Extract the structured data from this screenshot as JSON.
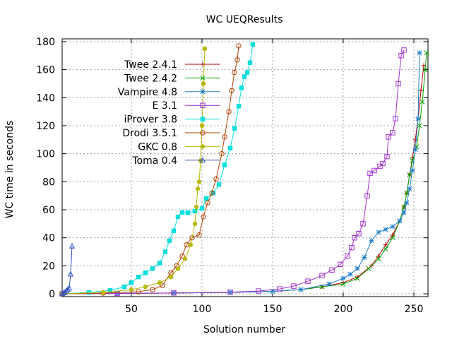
{
  "chart_data": {
    "type": "line",
    "title": "WC UEQResults",
    "xlabel": "Solution number",
    "ylabel": "WC time in seconds",
    "xlim": [
      1,
      260
    ],
    "ylim": [
      -2,
      182
    ],
    "xticks": [
      50,
      100,
      150,
      200,
      250
    ],
    "yticks": [
      0,
      20,
      40,
      60,
      80,
      100,
      120,
      140,
      160,
      180
    ],
    "grid": true,
    "legend_position": "top-left",
    "series": [
      {
        "name": "Twee 2.4.1",
        "color": "#c00000",
        "marker": "plus",
        "points": [
          [
            1,
            0
          ],
          [
            40,
            0.3
          ],
          [
            80,
            0.6
          ],
          [
            120,
            1
          ],
          [
            150,
            1.8
          ],
          [
            170,
            3
          ],
          [
            185,
            5
          ],
          [
            200,
            8
          ],
          [
            210,
            12
          ],
          [
            220,
            20
          ],
          [
            225,
            27
          ],
          [
            230,
            35
          ],
          [
            235,
            42
          ],
          [
            240,
            52
          ],
          [
            243,
            62
          ],
          [
            245,
            72
          ],
          [
            247,
            85
          ],
          [
            249,
            97
          ],
          [
            251,
            110
          ],
          [
            253,
            125
          ],
          [
            255,
            145
          ],
          [
            257,
            163
          ]
        ]
      },
      {
        "name": "Twee 2.4.2",
        "color": "#00a000",
        "marker": "cross",
        "points": [
          [
            1,
            0
          ],
          [
            40,
            0.3
          ],
          [
            80,
            0.6
          ],
          [
            120,
            1
          ],
          [
            150,
            1.8
          ],
          [
            170,
            3
          ],
          [
            185,
            5
          ],
          [
            200,
            7
          ],
          [
            210,
            11
          ],
          [
            218,
            18
          ],
          [
            225,
            25
          ],
          [
            230,
            32
          ],
          [
            235,
            40
          ],
          [
            240,
            52
          ],
          [
            243,
            62
          ],
          [
            245,
            72
          ],
          [
            247,
            85
          ],
          [
            249,
            95
          ],
          [
            252,
            105
          ],
          [
            254,
            120
          ],
          [
            256,
            137
          ],
          [
            258,
            160
          ],
          [
            259,
            172
          ]
        ]
      },
      {
        "name": "Vampire 4.8",
        "color": "#2080d0",
        "marker": "star",
        "points": [
          [
            1,
            0
          ],
          [
            40,
            0.3
          ],
          [
            80,
            0.6
          ],
          [
            120,
            1
          ],
          [
            150,
            1.8
          ],
          [
            170,
            3
          ],
          [
            190,
            7
          ],
          [
            200,
            11
          ],
          [
            205,
            14
          ],
          [
            210,
            18
          ],
          [
            215,
            26
          ],
          [
            220,
            38
          ],
          [
            225,
            44
          ],
          [
            230,
            46
          ],
          [
            235,
            48
          ],
          [
            240,
            52
          ],
          [
            243,
            58
          ],
          [
            245,
            65
          ],
          [
            247,
            75
          ],
          [
            249,
            88
          ],
          [
            251,
            103
          ],
          [
            253,
            125
          ],
          [
            254,
            172
          ]
        ]
      },
      {
        "name": "E 3.1",
        "color": "#a030d0",
        "marker": "square",
        "points": [
          [
            1,
            0
          ],
          [
            40,
            0.3
          ],
          [
            80,
            0.6
          ],
          [
            120,
            1.2
          ],
          [
            140,
            2
          ],
          [
            155,
            3.5
          ],
          [
            165,
            5.5
          ],
          [
            175,
            9
          ],
          [
            185,
            13
          ],
          [
            192,
            17
          ],
          [
            198,
            21
          ],
          [
            203,
            27
          ],
          [
            206,
            33
          ],
          [
            208,
            40
          ],
          [
            211,
            43
          ],
          [
            214,
            50
          ],
          [
            217,
            70
          ],
          [
            219,
            86
          ],
          [
            222,
            88
          ],
          [
            226,
            91
          ],
          [
            228,
            93
          ],
          [
            231,
            98
          ],
          [
            232,
            112
          ],
          [
            235,
            115
          ],
          [
            237,
            125
          ],
          [
            239,
            150
          ],
          [
            241,
            170
          ],
          [
            243,
            174
          ]
        ]
      },
      {
        "name": "iProver 3.8",
        "color": "#00dede",
        "marker": "filled-square",
        "points": [
          [
            1,
            0
          ],
          [
            20,
            1
          ],
          [
            35,
            2.5
          ],
          [
            45,
            5
          ],
          [
            50,
            8
          ],
          [
            55,
            12
          ],
          [
            60,
            15
          ],
          [
            65,
            18
          ],
          [
            70,
            22
          ],
          [
            74,
            30
          ],
          [
            77,
            38
          ],
          [
            80,
            45
          ],
          [
            83,
            55
          ],
          [
            86,
            58
          ],
          [
            90,
            58
          ],
          [
            95,
            59
          ],
          [
            100,
            61
          ],
          [
            103,
            68
          ],
          [
            108,
            72
          ],
          [
            112,
            78
          ],
          [
            116,
            92
          ],
          [
            120,
            104
          ],
          [
            123,
            118
          ],
          [
            126,
            134
          ],
          [
            128,
            147
          ],
          [
            130,
            155
          ],
          [
            132,
            158
          ],
          [
            134,
            165
          ],
          [
            136,
            178
          ]
        ]
      },
      {
        "name": "Drodi 3.5.1",
        "color": "#b04000",
        "marker": "circle",
        "points": [
          [
            1,
            0
          ],
          [
            30,
            0.5
          ],
          [
            55,
            1.5
          ],
          [
            65,
            3
          ],
          [
            72,
            6
          ],
          [
            78,
            15
          ],
          [
            82,
            20
          ],
          [
            86,
            27
          ],
          [
            89,
            35
          ],
          [
            93,
            40
          ],
          [
            98,
            42
          ],
          [
            101,
            55
          ],
          [
            104,
            65
          ],
          [
            107,
            72
          ],
          [
            110,
            82
          ],
          [
            114,
            100
          ],
          [
            116,
            112
          ],
          [
            119,
            130
          ],
          [
            121,
            145
          ],
          [
            123,
            158
          ],
          [
            125,
            167
          ],
          [
            126,
            177
          ]
        ]
      },
      {
        "name": "GKC 0.8",
        "color": "#b8b800",
        "marker": "filled-circle",
        "points": [
          [
            1,
            0
          ],
          [
            30,
            1
          ],
          [
            50,
            3
          ],
          [
            60,
            5
          ],
          [
            70,
            8
          ],
          [
            78,
            12
          ],
          [
            83,
            18
          ],
          [
            88,
            25
          ],
          [
            92,
            35
          ],
          [
            95,
            50
          ],
          [
            96,
            62
          ],
          [
            97,
            75
          ],
          [
            98,
            80
          ],
          [
            99,
            95
          ],
          [
            100,
            120
          ],
          [
            101,
            150
          ],
          [
            102,
            175
          ]
        ]
      },
      {
        "name": "Toma 0.4",
        "color": "#3050c0",
        "marker": "triangle",
        "points": [
          [
            1,
            0
          ],
          [
            2,
            0.5
          ],
          [
            3,
            1
          ],
          [
            4,
            2
          ],
          [
            5,
            3
          ],
          [
            6,
            4
          ],
          [
            7,
            14
          ],
          [
            8,
            34
          ]
        ]
      }
    ]
  }
}
